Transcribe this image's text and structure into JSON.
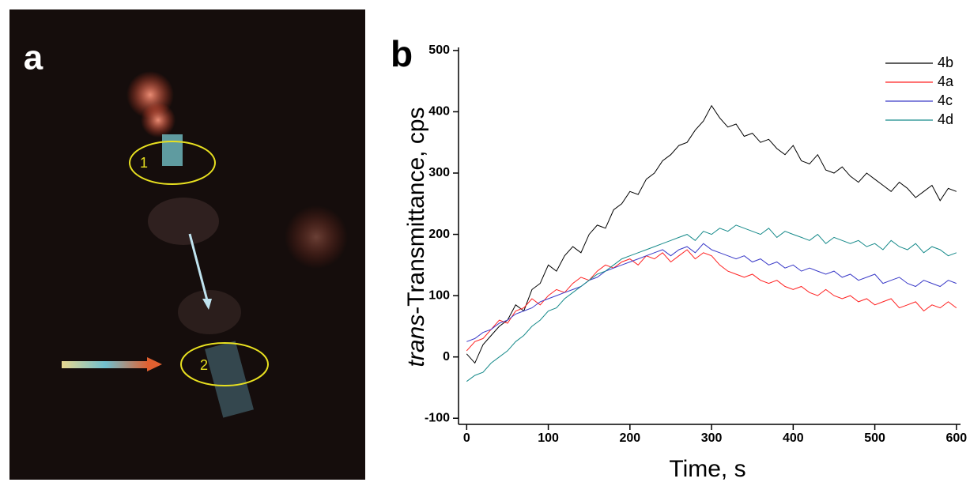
{
  "panel_a": {
    "label": "a",
    "markers": [
      "1",
      "2"
    ]
  },
  "chart_data": {
    "type": "line",
    "panel_label": "b",
    "xlabel": "Time, s",
    "ylabel": [
      "trans",
      "-Transmittance, cps"
    ],
    "xlim": [
      -10,
      605
    ],
    "ylim": [
      -110,
      505
    ],
    "xticks": [
      0,
      100,
      200,
      300,
      400,
      500,
      600
    ],
    "yticks": [
      -100,
      0,
      100,
      200,
      300,
      400,
      500
    ],
    "legend": "upper right",
    "x": [
      0,
      10,
      20,
      30,
      40,
      50,
      60,
      70,
      80,
      90,
      100,
      110,
      120,
      130,
      140,
      150,
      160,
      170,
      180,
      190,
      200,
      210,
      220,
      230,
      240,
      250,
      260,
      270,
      280,
      290,
      300,
      310,
      320,
      330,
      340,
      350,
      360,
      370,
      380,
      390,
      400,
      410,
      420,
      430,
      440,
      450,
      460,
      470,
      480,
      490,
      500,
      510,
      520,
      530,
      540,
      550,
      560,
      570,
      580,
      590,
      600
    ],
    "series": [
      {
        "name": "4b",
        "color": "#000000",
        "values": [
          5,
          -10,
          20,
          35,
          50,
          60,
          85,
          75,
          110,
          120,
          150,
          140,
          165,
          180,
          170,
          200,
          215,
          210,
          240,
          250,
          270,
          265,
          290,
          300,
          320,
          330,
          345,
          350,
          370,
          385,
          410,
          390,
          375,
          380,
          360,
          365,
          350,
          355,
          340,
          330,
          345,
          320,
          315,
          330,
          305,
          300,
          310,
          295,
          285,
          300,
          290,
          280,
          270,
          285,
          275,
          260,
          270,
          280,
          255,
          275,
          270
        ]
      },
      {
        "name": "4a",
        "color": "#ff2020",
        "values": [
          10,
          25,
          30,
          45,
          60,
          55,
          75,
          80,
          95,
          85,
          100,
          110,
          105,
          120,
          130,
          125,
          140,
          150,
          145,
          155,
          160,
          150,
          165,
          160,
          170,
          155,
          165,
          175,
          160,
          170,
          165,
          150,
          140,
          135,
          130,
          135,
          125,
          120,
          125,
          115,
          110,
          115,
          105,
          100,
          110,
          100,
          95,
          100,
          90,
          95,
          85,
          90,
          95,
          80,
          85,
          90,
          75,
          85,
          80,
          90,
          80
        ]
      },
      {
        "name": "4c",
        "color": "#3b3bc8",
        "values": [
          25,
          30,
          40,
          45,
          55,
          60,
          70,
          75,
          80,
          90,
          95,
          100,
          105,
          110,
          115,
          125,
          130,
          140,
          145,
          150,
          155,
          160,
          165,
          170,
          175,
          165,
          175,
          180,
          170,
          185,
          175,
          170,
          165,
          160,
          165,
          155,
          160,
          150,
          155,
          145,
          150,
          140,
          145,
          140,
          135,
          140,
          130,
          135,
          125,
          130,
          135,
          120,
          125,
          130,
          120,
          115,
          125,
          120,
          115,
          125,
          120
        ]
      },
      {
        "name": "4d",
        "color": "#168a8a",
        "values": [
          -40,
          -30,
          -25,
          -10,
          0,
          10,
          25,
          35,
          50,
          60,
          75,
          80,
          95,
          105,
          115,
          125,
          135,
          140,
          150,
          160,
          165,
          170,
          175,
          180,
          185,
          190,
          195,
          200,
          190,
          205,
          200,
          210,
          205,
          215,
          210,
          205,
          200,
          210,
          195,
          205,
          200,
          195,
          190,
          200,
          185,
          195,
          190,
          185,
          190,
          180,
          185,
          175,
          190,
          180,
          175,
          185,
          170,
          180,
          175,
          165,
          170
        ]
      }
    ]
  }
}
